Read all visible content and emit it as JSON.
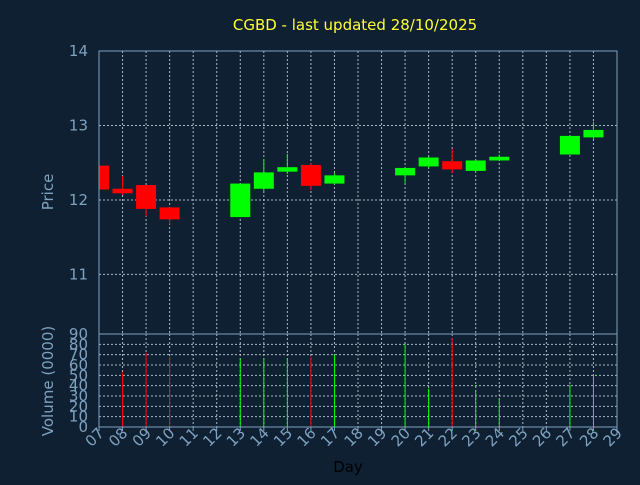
{
  "chart_data": {
    "type": "candlestick",
    "title": "CGBD - last updated 28/10/2025",
    "xlabel": "Day",
    "ylabel_price": "Price",
    "ylabel_volume": "Volume (0000)",
    "price_ylim": [
      10.2,
      14.0
    ],
    "price_yticks": [
      11,
      12,
      13,
      14
    ],
    "volume_ylim": [
      0,
      90
    ],
    "volume_yticks": [
      0,
      10,
      20,
      30,
      40,
      50,
      60,
      70,
      80,
      90
    ],
    "x_labels": [
      "07",
      "08",
      "09",
      "10",
      "11",
      "12",
      "13",
      "14",
      "15",
      "16",
      "17",
      "18",
      "19",
      "20",
      "21",
      "22",
      "23",
      "24",
      "25",
      "26",
      "27",
      "28",
      "29"
    ],
    "grid": true,
    "colors": {
      "up": "#00ff00",
      "down": "#ff0000"
    },
    "candles": [
      {
        "day": "07",
        "open": 12.46,
        "high": 12.46,
        "low": 12.14,
        "close": 12.14,
        "volume": 0
      },
      {
        "day": "08",
        "open": 12.15,
        "high": 12.32,
        "low": 12.07,
        "close": 12.09,
        "volume": 53
      },
      {
        "day": "09",
        "open": 12.2,
        "high": 12.2,
        "low": 11.78,
        "close": 11.88,
        "volume": 72
      },
      {
        "day": "10",
        "open": 11.9,
        "high": 11.9,
        "low": 11.67,
        "close": 11.74,
        "volume": 68
      },
      {
        "day": "13",
        "open": 11.77,
        "high": 12.22,
        "low": 11.77,
        "close": 12.22,
        "volume": 66
      },
      {
        "day": "14",
        "open": 12.15,
        "high": 12.55,
        "low": 12.12,
        "close": 12.37,
        "volume": 66
      },
      {
        "day": "15",
        "open": 12.38,
        "high": 12.62,
        "low": 12.35,
        "close": 12.44,
        "volume": 66
      },
      {
        "day": "16",
        "open": 12.47,
        "high": 12.5,
        "low": 12.13,
        "close": 12.19,
        "volume": 68
      },
      {
        "day": "17",
        "open": 12.22,
        "high": 12.36,
        "low": 12.21,
        "close": 12.33,
        "volume": 70
      },
      {
        "day": "20",
        "open": 12.33,
        "high": 12.44,
        "low": 12.22,
        "close": 12.43,
        "volume": 80
      },
      {
        "day": "21",
        "open": 12.45,
        "high": 12.58,
        "low": 12.43,
        "close": 12.57,
        "volume": 37
      },
      {
        "day": "22",
        "open": 12.52,
        "high": 12.68,
        "low": 12.36,
        "close": 12.41,
        "volume": 86
      },
      {
        "day": "23",
        "open": 12.39,
        "high": 12.53,
        "low": 12.38,
        "close": 12.53,
        "volume": 36
      },
      {
        "day": "24",
        "open": 12.53,
        "high": 12.61,
        "low": 12.53,
        "close": 12.58,
        "volume": 27
      },
      {
        "day": "27",
        "open": 12.61,
        "high": 12.86,
        "low": 12.61,
        "close": 12.86,
        "volume": 41
      },
      {
        "day": "28",
        "open": 12.84,
        "high": 13.05,
        "low": 12.82,
        "close": 12.94,
        "volume": 51
      }
    ]
  }
}
